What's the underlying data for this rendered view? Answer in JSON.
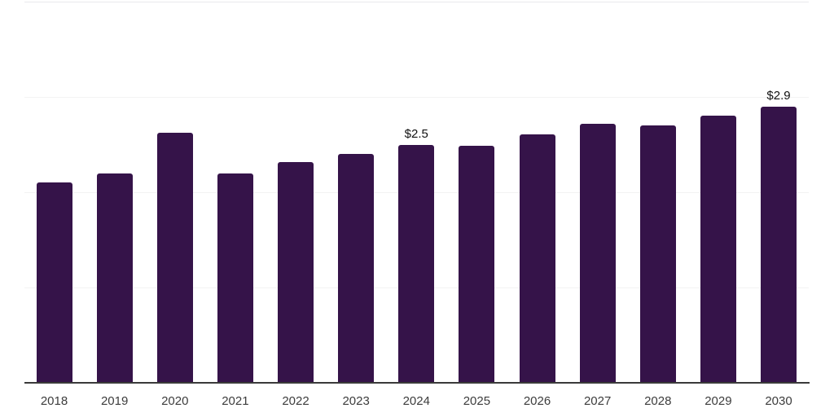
{
  "chart_data": {
    "type": "bar",
    "title": "",
    "xlabel": "",
    "ylabel": "",
    "categories": [
      "2018",
      "2019",
      "2020",
      "2021",
      "2022",
      "2023",
      "2024",
      "2025",
      "2026",
      "2027",
      "2028",
      "2029",
      "2030"
    ],
    "values": [
      2.1,
      2.2,
      2.62,
      2.2,
      2.32,
      2.4,
      2.5,
      2.49,
      2.61,
      2.72,
      2.7,
      2.8,
      2.9
    ],
    "data_labels": [
      "",
      "",
      "",
      "",
      "",
      "",
      "$2.5",
      "",
      "",
      "",
      "",
      "",
      "$2.9"
    ],
    "ylim": [
      0,
      4
    ],
    "gridline_values": [
      1,
      2,
      3,
      4
    ],
    "grid": "horizontal-faint",
    "legend": "none",
    "colors": {
      "bar": "#351349",
      "axis_line": "#3a3a3a",
      "grid_line": "#f3f3f3",
      "top_border": "#e9e9ec",
      "tick_label": "#3c3c3c",
      "data_label": "#111111",
      "background": "#ffffff"
    }
  }
}
